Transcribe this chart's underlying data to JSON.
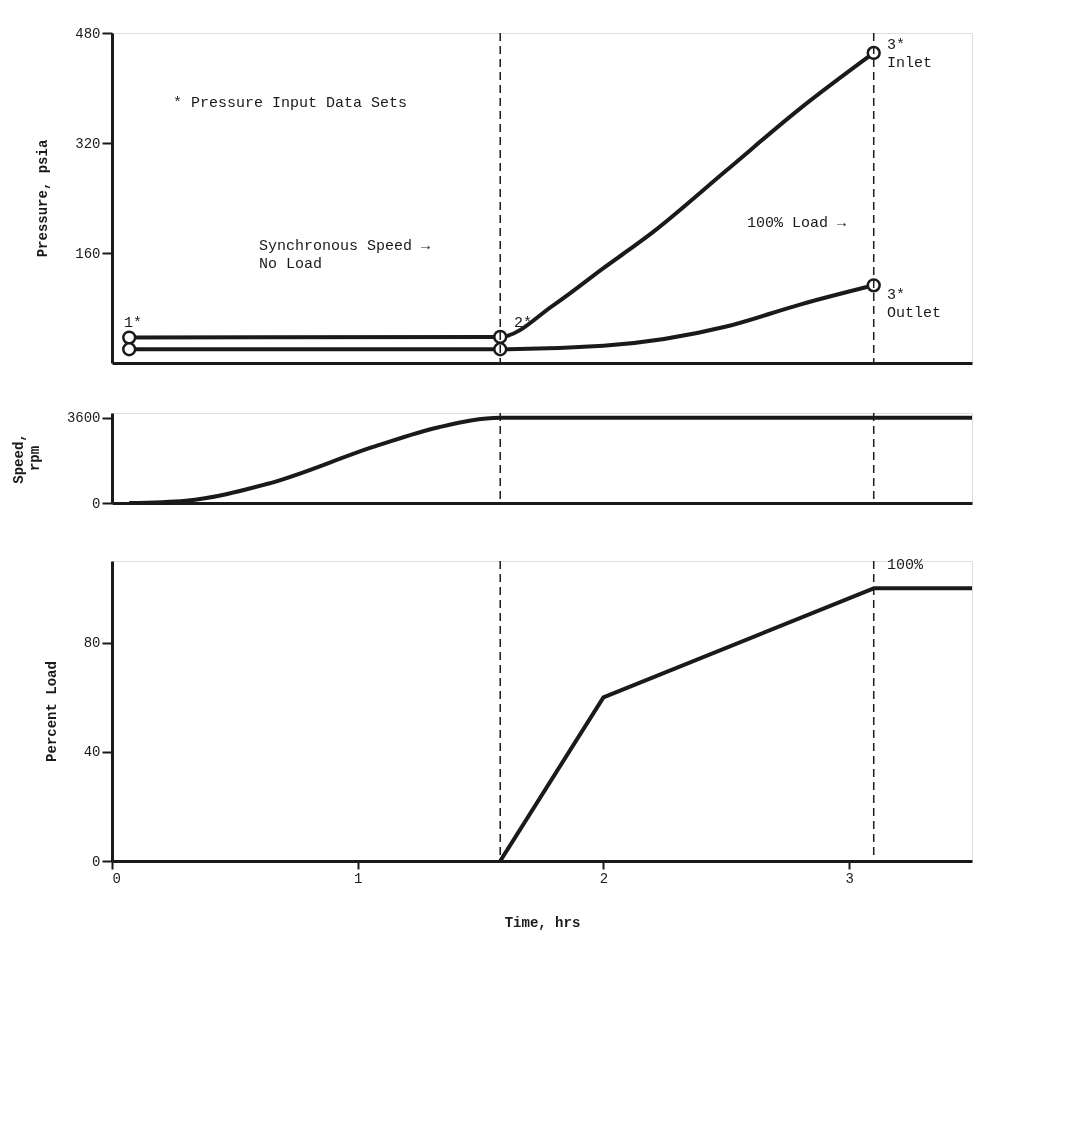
{
  "chart_data": [
    {
      "type": "line",
      "ylabel": "Pressure, psia",
      "xlim": [
        0,
        3.5
      ],
      "ylim": [
        0,
        480
      ],
      "yticks": [
        160,
        320,
        480
      ],
      "tick_labels": "y",
      "grid": false,
      "line_style": "solid",
      "series": [
        {
          "color": "#1a1a1a",
          "x": [
            0.07,
            1.58,
            1.8,
            2.0,
            2.2,
            2.5,
            2.8,
            3.1
          ],
          "values": [
            37,
            38,
            85,
            138,
            190,
            280,
            370,
            451
          ]
        },
        {
          "color": "#1a1a1a",
          "x": [
            0.07,
            1.58,
            2.0,
            2.5,
            2.8,
            3.1
          ],
          "values": [
            20,
            20,
            25,
            53,
            85,
            113
          ]
        },
        {
          "type": "scatter",
          "marker": "circle",
          "color": "#1a1a1a",
          "x": [
            0.07,
            1.58,
            3.1
          ],
          "values": [
            37,
            38,
            451
          ]
        },
        {
          "type": "scatter",
          "marker": "circle",
          "color": "#1a1a1a",
          "x": [
            0.07,
            1.58,
            3.1
          ],
          "values": [
            20,
            20,
            113
          ]
        }
      ],
      "ref_lines": [
        {
          "axis": "x",
          "value": 1.58,
          "line_style": "dashed",
          "color": "#1a1a1a"
        },
        {
          "axis": "x",
          "value": 3.1,
          "line_style": "dashed",
          "color": "#1a1a1a"
        }
      ],
      "annotations": [
        "* Pressure Input Data Sets",
        "1*",
        "2*",
        "3*\nInlet",
        "3*\nOutlet",
        "Synchronous Speed →\nNo Load",
        "100% Load →"
      ]
    },
    {
      "type": "line",
      "ylabel": "Speed,\nrpm",
      "xlim": [
        0,
        3.5
      ],
      "ylim": [
        0,
        3800
      ],
      "yticks": [
        0,
        3600
      ],
      "tick_labels": "y",
      "grid": false,
      "line_style": "solid",
      "series": [
        {
          "color": "#1a1a1a",
          "x": [
            0.07,
            0.3,
            0.63,
            1.07,
            1.33,
            1.58,
            3.5
          ],
          "values": [
            0,
            100,
            800,
            2390,
            3200,
            3600,
            3600
          ]
        }
      ],
      "ref_lines": [
        {
          "axis": "x",
          "value": 1.58,
          "line_style": "dashed",
          "color": "#1a1a1a"
        },
        {
          "axis": "x",
          "value": 3.1,
          "line_style": "dashed",
          "color": "#1a1a1a"
        }
      ]
    },
    {
      "type": "line",
      "ylabel": "Percent Load",
      "xlabel": "Time, hrs",
      "xlim": [
        0,
        3.5
      ],
      "ylim": [
        0,
        110
      ],
      "xticks": [
        0,
        1,
        2,
        3
      ],
      "yticks": [
        0,
        40,
        80
      ],
      "grid": false,
      "line_style": "solid",
      "series": [
        {
          "color": "#1a1a1a",
          "x": [
            1.58,
            2.0,
            3.1,
            3.5
          ],
          "values": [
            0,
            60,
            100,
            100
          ]
        }
      ],
      "ref_lines": [
        {
          "axis": "x",
          "value": 1.58,
          "line_style": "dashed",
          "color": "#1a1a1a"
        },
        {
          "axis": "x",
          "value": 3.1,
          "line_style": "dashed",
          "color": "#1a1a1a"
        }
      ],
      "annotations": [
        "100%"
      ]
    }
  ]
}
